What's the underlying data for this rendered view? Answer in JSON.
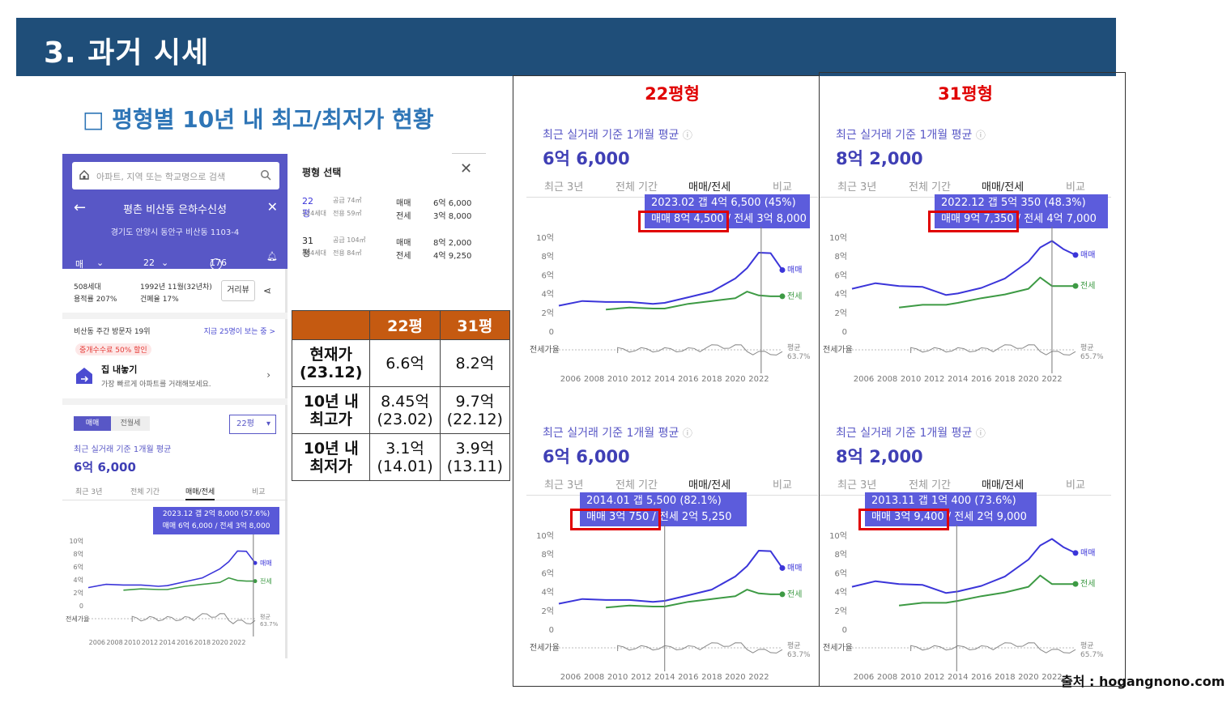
{
  "slide": {
    "title": "3. 과거 시세",
    "subtitle": "□ 평형별 10년 내 최고/최저가 현황",
    "source": "출처 : hogangnono.com"
  },
  "phone": {
    "search_placeholder": "아파트, 지역 또는 학교명으로 검색",
    "apt_name": "평촌 비산동 은하수신성",
    "address": "경기도 안양시 동안구 비산동 1103-4",
    "tab_trade": "매매",
    "tab_size": "22평",
    "comment_count": "176",
    "households": "508세대",
    "floor_ratio": "용적률 207%",
    "built": "1992년 11월(32년차)",
    "coverage": "건폐율 17%",
    "road_view": "거리뷰",
    "weekly_visitors": "비산동 주간 방문자 19위",
    "now_viewing": "지금 25명이 보는 중 >",
    "badge": "중개수수료 50% 할인",
    "jip_title": "집 내놓기",
    "jip_desc": "가장 빠르게 아파트를 거래해보세요.",
    "toggle_trade": "매매",
    "toggle_rent": "전월세",
    "size_select": "22평",
    "caption": "최근 실거래 기준 1개월 평균",
    "price": "6억 6,000",
    "tabs": [
      "최근 3년",
      "전체 기간",
      "매매/전세",
      "비교"
    ],
    "tooltip_line1": "2023.12  갭 2억 8,000 (57.6%)",
    "tooltip_line2": "매매 6억 6,000 / 전세 3억 8,000",
    "y_labels": [
      "10억",
      "8억",
      "6억",
      "4억",
      "2억",
      "0"
    ],
    "x_labels": [
      "2006",
      "2008",
      "2010",
      "2012",
      "2014",
      "2016",
      "2018",
      "2020",
      "2022"
    ],
    "legend_sale": "매매",
    "legend_jeonse": "전세",
    "ratio_label": "전세가율",
    "avg_label": "평균",
    "avg_value": "63.7%"
  },
  "selection": {
    "title": "평형 선택",
    "rows": [
      {
        "pyeong": "22평",
        "households": "124세대",
        "supply": "공급 74㎡",
        "exclusive": "전용 59㎡",
        "label1": "매매",
        "label2": "전세",
        "sale": "6억 6,000",
        "jeonse": "3억 8,000"
      },
      {
        "pyeong": "31평",
        "households": "384세대",
        "supply": "공급 104㎡",
        "exclusive": "전용 84㎡",
        "label1": "매매",
        "label2": "전세",
        "sale": "8억 2,000",
        "jeonse": "4억 9,250"
      }
    ]
  },
  "table": {
    "headers": [
      "",
      "22평",
      "31평"
    ],
    "rows": [
      {
        "label1": "현재가",
        "label2": "(23.12)",
        "a1": "6.6억",
        "a2": "",
        "b1": "8.2억",
        "b2": ""
      },
      {
        "label1": "10년 내",
        "label2": "최고가",
        "a1": "8.45억",
        "a2": "(23.02)",
        "b1": "9.7억",
        "b2": "(22.12)"
      },
      {
        "label1": "10년 내",
        "label2": "최저가",
        "a1": "3.1억",
        "a2": "(14.01)",
        "b1": "3.9억",
        "b2": "(13.11)"
      }
    ]
  },
  "cards": [
    {
      "head": "22평형",
      "caption": "최근 실거래 기준 1개월 평균",
      "price": "6억 6,000",
      "tip1": "2023.02  갭 4억 6,500 (45%)",
      "tip2a": "매매 8억 4,500",
      "tip2b": " / 전세 3억 8,000",
      "avg": "63.7%"
    },
    {
      "head": "31평형",
      "caption": "최근 실거래 기준 1개월 평균",
      "price": "8억 2,000",
      "tip1": "2022.12  갭 5억 350 (48.3%)",
      "tip2a": "매매 9억 7,350",
      "tip2b": " / 전세 4억 7,000",
      "avg": "65.7%"
    },
    {
      "head": "",
      "caption": "최근 실거래 기준 1개월 평균",
      "price": "6억 6,000",
      "tip1": "2014.01  갭 5,500 (82.1%)",
      "tip2a": "매매 3억 750",
      "tip2b": " / 전세 2억 5,250",
      "avg": "63.7%"
    },
    {
      "head": "",
      "caption": "최근 실거래 기준 1개월 평균",
      "price": "8억 2,000",
      "tip1": "2013.11  갭 1억 400 (73.6%)",
      "tip2a": "매매 3억 9,400",
      "tip2b": " / 전세 2억 9,000",
      "avg": "65.7%"
    }
  ],
  "card_tabs": [
    "최근 3년",
    "전체 기간",
    "매매/전세",
    "비교"
  ],
  "chart_labels": {
    "y": [
      "10억",
      "8억",
      "6억",
      "4억",
      "2억",
      "0"
    ],
    "x": [
      "2006",
      "2008",
      "2010",
      "2012",
      "2014",
      "2016",
      "2018",
      "2020",
      "2022"
    ],
    "sale": "매매",
    "jeonse": "전세",
    "ratio": "전세가율",
    "avg": "평균"
  },
  "colors": {
    "sale": "#3b35d9",
    "jeonse": "#3d9a44",
    "title_bar": "#1f4e79",
    "table_head": "#c55a11",
    "highlight": "#e00000"
  },
  "chart_data": [
    {
      "type": "line",
      "title": "22평형",
      "ylabel": "억",
      "ylim": [
        0,
        10
      ],
      "x": [
        2005,
        2007,
        2009,
        2011,
        2013,
        2014,
        2016,
        2018,
        2020,
        2021,
        2022,
        2023,
        2024
      ],
      "series": [
        {
          "name": "매매",
          "values": [
            2.8,
            3.3,
            3.2,
            3.2,
            3.0,
            3.1,
            3.7,
            4.3,
            5.7,
            6.8,
            8.45,
            8.4,
            6.6
          ]
        },
        {
          "name": "전세",
          "values": [
            null,
            null,
            2.4,
            2.6,
            2.5,
            2.5,
            3.0,
            3.3,
            3.6,
            4.3,
            3.9,
            3.8,
            3.8
          ]
        }
      ]
    },
    {
      "type": "line",
      "title": "31평형",
      "ylabel": "억",
      "ylim": [
        0,
        10
      ],
      "x": [
        2005,
        2007,
        2009,
        2011,
        2013,
        2014,
        2016,
        2018,
        2020,
        2021,
        2022,
        2023,
        2024
      ],
      "series": [
        {
          "name": "매매",
          "values": [
            4.6,
            5.2,
            4.9,
            4.8,
            3.94,
            4.1,
            4.7,
            5.7,
            7.5,
            9.0,
            9.7,
            8.8,
            8.2
          ]
        },
        {
          "name": "전세",
          "values": [
            null,
            null,
            2.6,
            2.9,
            2.9,
            3.1,
            3.6,
            4.0,
            4.6,
            5.8,
            4.9,
            4.9,
            4.9
          ]
        }
      ]
    }
  ]
}
